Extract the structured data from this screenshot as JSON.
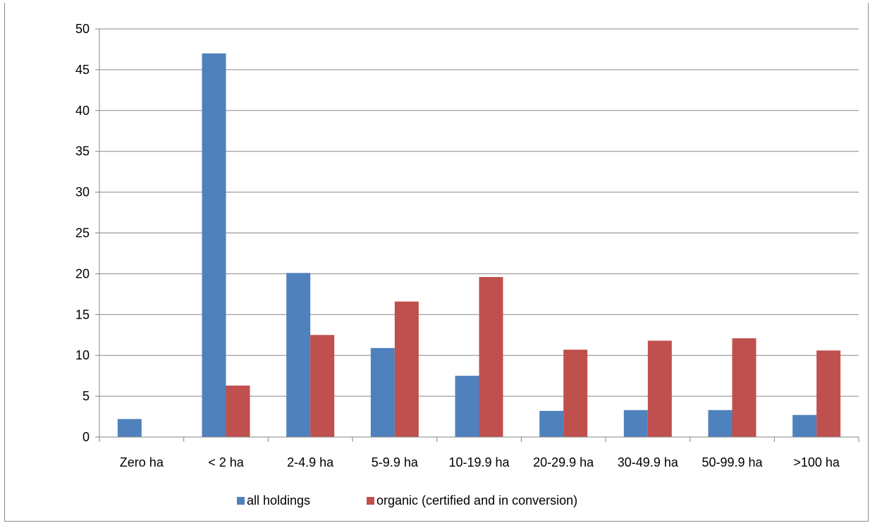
{
  "chart_data": {
    "type": "bar",
    "title": "",
    "xlabel": "",
    "ylabel": "",
    "ylim": [
      0,
      50
    ],
    "yticks": [
      0,
      5,
      10,
      15,
      20,
      25,
      30,
      35,
      40,
      45,
      50
    ],
    "grid": true,
    "legend_position": "bottom",
    "categories": [
      "Zero ha",
      "< 2 ha",
      "2-4.9 ha",
      "5-9.9 ha",
      "10-19.9 ha",
      "20-29.9 ha",
      "30-49.9 ha",
      "50-99.9 ha",
      ">100 ha"
    ],
    "series": [
      {
        "name": "all holdings",
        "color": "#4f81bd",
        "values": [
          2.2,
          47.0,
          20.1,
          10.9,
          7.5,
          3.2,
          3.3,
          3.3,
          2.7
        ]
      },
      {
        "name": "organic (certified and in conversion)",
        "color": "#c0504d",
        "values": [
          0,
          6.3,
          12.5,
          16.6,
          19.6,
          10.7,
          11.8,
          12.1,
          10.6
        ]
      }
    ]
  }
}
